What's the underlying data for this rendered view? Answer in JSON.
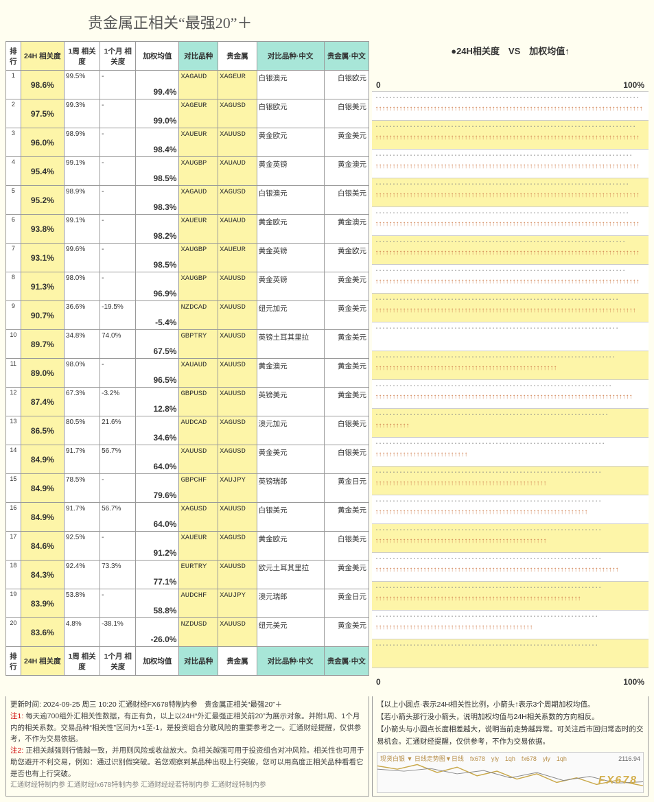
{
  "title": "贵金属正相关“最强20”＋",
  "chart_title": "●24H相关度　VS　加权均值↑",
  "axis_left": "0",
  "axis_right": "100%",
  "headers": {
    "rank": "排行",
    "c24h": "24H\n相关度",
    "c1w": "1周\n相关度",
    "c1m": "1个月\n相关度",
    "wavg": "加权均值",
    "sym": "对比品种",
    "pm": "贵金属",
    "cn1": "对比品种·中文",
    "cn2": "贵金属·中文"
  },
  "rows": [
    {
      "rank": 1,
      "c24h": "98.6%",
      "c1w": "99.5%",
      "c1m": "-",
      "wavg": "99.4%",
      "sym": "XAGAUD",
      "pm": "XAGEUR",
      "cn1": "白银澳元",
      "cn2": "白银欧元",
      "bar24": 98.6,
      "baravg": 99.4
    },
    {
      "rank": 2,
      "c24h": "97.5%",
      "c1w": "99.3%",
      "c1m": "-",
      "wavg": "99.0%",
      "sym": "XAGEUR",
      "pm": "XAGUSD",
      "cn1": "白银欧元",
      "cn2": "白银美元",
      "bar24": 97.5,
      "baravg": 99.0
    },
    {
      "rank": 3,
      "c24h": "96.0%",
      "c1w": "98.9%",
      "c1m": "-",
      "wavg": "98.4%",
      "sym": "XAUEUR",
      "pm": "XAUUSD",
      "cn1": "黄金欧元",
      "cn2": "黄金美元",
      "bar24": 96.0,
      "baravg": 98.4
    },
    {
      "rank": 4,
      "c24h": "95.4%",
      "c1w": "99.1%",
      "c1m": "-",
      "wavg": "98.5%",
      "sym": "XAUGBP",
      "pm": "XAUAUD",
      "cn1": "黄金英镑",
      "cn2": "黄金澳元",
      "bar24": 95.4,
      "baravg": 98.5
    },
    {
      "rank": 5,
      "c24h": "95.2%",
      "c1w": "98.9%",
      "c1m": "-",
      "wavg": "98.3%",
      "sym": "XAGAUD",
      "pm": "XAGUSD",
      "cn1": "白银澳元",
      "cn2": "白银美元",
      "bar24": 95.2,
      "baravg": 98.3
    },
    {
      "rank": 6,
      "c24h": "93.8%",
      "c1w": "99.1%",
      "c1m": "-",
      "wavg": "98.2%",
      "sym": "XAUEUR",
      "pm": "XAUAUD",
      "cn1": "黄金欧元",
      "cn2": "黄金澳元",
      "bar24": 93.8,
      "baravg": 98.2
    },
    {
      "rank": 7,
      "c24h": "93.1%",
      "c1w": "99.6%",
      "c1m": "-",
      "wavg": "98.5%",
      "sym": "XAUGBP",
      "pm": "XAUEUR",
      "cn1": "黄金英镑",
      "cn2": "黄金欧元",
      "bar24": 93.1,
      "baravg": 98.5
    },
    {
      "rank": 8,
      "c24h": "91.3%",
      "c1w": "98.0%",
      "c1m": "-",
      "wavg": "96.9%",
      "sym": "XAUGBP",
      "pm": "XAUUSD",
      "cn1": "黄金英镑",
      "cn2": "黄金美元",
      "bar24": 91.3,
      "baravg": 96.9
    },
    {
      "rank": 9,
      "c24h": "90.7%",
      "c1w": "36.6%",
      "c1m": "-19.5%",
      "wavg": "-5.4%",
      "sym": "NZDCAD",
      "pm": "XAUUSD",
      "cn1": "纽元加元",
      "cn2": "黄金美元",
      "bar24": 90.7,
      "baravg": 0
    },
    {
      "rank": 10,
      "c24h": "89.7%",
      "c1w": "34.8%",
      "c1m": "74.0%",
      "wavg": "67.5%",
      "sym": "GBPTRY",
      "pm": "XAUUSD",
      "cn1": "英镑土耳其里拉",
      "cn2": "黄金美元",
      "bar24": 89.7,
      "baravg": 67.5
    },
    {
      "rank": 11,
      "c24h": "89.0%",
      "c1w": "98.0%",
      "c1m": "-",
      "wavg": "96.5%",
      "sym": "XAUAUD",
      "pm": "XAUUSD",
      "cn1": "黄金澳元",
      "cn2": "黄金美元",
      "bar24": 89.0,
      "baravg": 96.5
    },
    {
      "rank": 12,
      "c24h": "87.4%",
      "c1w": "67.3%",
      "c1m": "-3.2%",
      "wavg": "12.8%",
      "sym": "GBPUSD",
      "pm": "XAUUSD",
      "cn1": "英镑美元",
      "cn2": "黄金美元",
      "bar24": 87.4,
      "baravg": 12.8
    },
    {
      "rank": 13,
      "c24h": "86.5%",
      "c1w": "80.5%",
      "c1m": "21.6%",
      "wavg": "34.6%",
      "sym": "AUDCAD",
      "pm": "XAGUSD",
      "cn1": "澳元加元",
      "cn2": "白银美元",
      "bar24": 86.5,
      "baravg": 34.6
    },
    {
      "rank": 14,
      "c24h": "84.9%",
      "c1w": "91.7%",
      "c1m": "56.7%",
      "wavg": "64.0%",
      "sym": "XAUUSD",
      "pm": "XAGUSD",
      "cn1": "黄金美元",
      "cn2": "白银美元",
      "bar24": 84.9,
      "baravg": 64.0
    },
    {
      "rank": 15,
      "c24h": "84.9%",
      "c1w": "78.5%",
      "c1m": "-",
      "wavg": "79.6%",
      "sym": "GBPCHF",
      "pm": "XAUJPY",
      "cn1": "英镑瑞郎",
      "cn2": "黄金日元",
      "bar24": 84.9,
      "baravg": 79.6
    },
    {
      "rank": 16,
      "c24h": "84.9%",
      "c1w": "91.7%",
      "c1m": "56.7%",
      "wavg": "64.0%",
      "sym": "XAGUSD",
      "pm": "XAUUSD",
      "cn1": "白银美元",
      "cn2": "黄金美元",
      "bar24": 84.9,
      "baravg": 64.0
    },
    {
      "rank": 17,
      "c24h": "84.6%",
      "c1w": "92.5%",
      "c1m": "-",
      "wavg": "91.2%",
      "sym": "XAUEUR",
      "pm": "XAGUSD",
      "cn1": "黄金欧元",
      "cn2": "白银美元",
      "bar24": 84.6,
      "baravg": 91.2
    },
    {
      "rank": 18,
      "c24h": "84.3%",
      "c1w": "92.4%",
      "c1m": "73.3%",
      "wavg": "77.1%",
      "sym": "EURTRY",
      "pm": "XAUUSD",
      "cn1": "欧元土耳其里拉",
      "cn2": "黄金美元",
      "bar24": 84.3,
      "baravg": 77.1
    },
    {
      "rank": 19,
      "c24h": "83.9%",
      "c1w": "53.8%",
      "c1m": "-",
      "wavg": "58.8%",
      "sym": "AUDCHF",
      "pm": "XAUJPY",
      "cn1": "澳元瑞郎",
      "cn2": "黄金日元",
      "bar24": 83.9,
      "baravg": 58.8
    },
    {
      "rank": 20,
      "c24h": "83.6%",
      "c1w": "4.8%",
      "c1m": "-38.1%",
      "wavg": "-26.0%",
      "sym": "NZDUSD",
      "pm": "XAUUSD",
      "cn1": "纽元美元",
      "cn2": "黄金美元",
      "bar24": 83.6,
      "baravg": 0
    }
  ],
  "footer_left": {
    "update": "更新时间: 2024-09-25 周三 10:20 汇通财经FX678特制内参　贵金属正相关“最强20”＋",
    "note1_label": "注1:",
    "note1": "每天逾700组外汇相关性数据，有正有负，以上以24H“外汇最强正相关前20”为展示对象。并附1周、1个月内的相关系数。交易品种“相关性”区间为+1至-1，是投资组合分散风险的重要参考之一。汇通财经提醒，仅供参考，不作为交易依据。",
    "note2_label": "注2:",
    "note2": "正相关越强则行情越一致，并用则风险或收益放大。负相关越强可用于投资组合对冲风险。相关性也可用于助您避开不利交易，例如：通过识别假突破。若您观察到某品种出现上行突破，您可以用高度正相关品种看看它是否也有上行突破。",
    "bottom": "汇通财经特制内参 汇通财经fx678特制内参 汇通财经经若特制内参 汇通财经特制内参"
  },
  "footer_right": {
    "l1": "【以上小圆点·表示24H相关性比例，小箭头↑表示3个周期加权均值。",
    "l2": "【若小箭头那行没小箭头，说明加权均值与24H相关系数的方向相反。",
    "l3": "【小箭头与小圆点长度相差越大，说明当前走势越异常。可关注后市回归常态时的交易机会。汇通财经提醒，仅供参考，不作为交易依据。",
    "chart_label": "现货白银 ▼ 日线走势图▼日线　fx678　yly　1qh　fx678　yly　1qh",
    "brand": "FX678",
    "price": "2116.94"
  },
  "colors": {
    "bg": "#fffef0",
    "yellow": "#fdf5a8",
    "teal": "#a8e6d8",
    "dot": "#888888",
    "arrow": "#d08050",
    "border": "#999999"
  }
}
